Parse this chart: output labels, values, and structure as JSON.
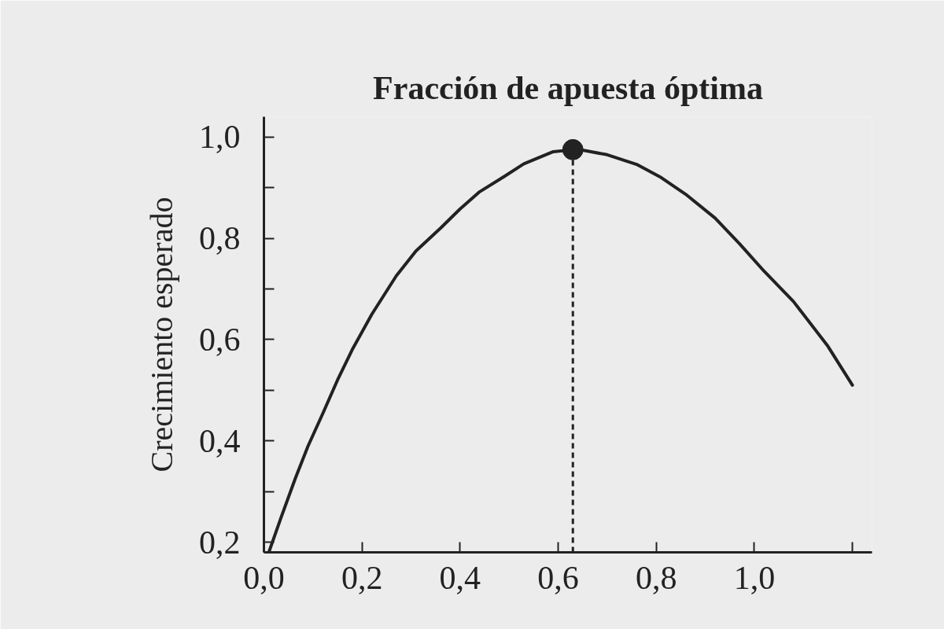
{
  "chart_data": {
    "type": "line",
    "title": "Fracción de apuesta óptima",
    "ylabel": "Crecimiento esperado",
    "xlim": [
      0,
      1.24
    ],
    "ylim": [
      0.18,
      1.04
    ],
    "xticks": [
      {
        "value": 0,
        "label": "0,0"
      },
      {
        "value": 0.2,
        "label": "0,2"
      },
      {
        "value": 0.4,
        "label": "0,4"
      },
      {
        "value": 0.6,
        "label": "0,6"
      },
      {
        "value": 0.8,
        "label": "0,8"
      },
      {
        "value": 1.0,
        "label": "1,0"
      },
      {
        "value": 1.2,
        "label": null
      }
    ],
    "yticks": [
      {
        "value": 0.2,
        "label": "0,2"
      },
      {
        "value": 0.3,
        "label": null
      },
      {
        "value": 0.4,
        "label": "0,4"
      },
      {
        "value": 0.5,
        "label": null
      },
      {
        "value": 0.6,
        "label": "0,6"
      },
      {
        "value": 0.7,
        "label": null
      },
      {
        "value": 0.8,
        "label": "0,8"
      },
      {
        "value": 0.9,
        "label": null
      },
      {
        "value": 1.0,
        "label": "1,0"
      }
    ],
    "series": [
      {
        "color": "#222222",
        "line_style": "solid",
        "x": [
          0.01,
          0.035,
          0.064,
          0.09,
          0.12,
          0.15,
          0.18,
          0.22,
          0.27,
          0.31,
          0.36,
          0.4,
          0.44,
          0.49,
          0.53,
          0.59,
          0.63,
          0.65,
          0.7,
          0.76,
          0.81,
          0.86,
          0.92,
          0.97,
          1.02,
          1.08,
          1.15,
          1.2
        ],
        "values": [
          0.18,
          0.249,
          0.326,
          0.39,
          0.454,
          0.52,
          0.58,
          0.65,
          0.726,
          0.775,
          0.82,
          0.858,
          0.892,
          0.922,
          0.947,
          0.971,
          0.975,
          0.974,
          0.965,
          0.946,
          0.92,
          0.887,
          0.84,
          0.789,
          0.735,
          0.675,
          0.587,
          0.51
        ]
      },
      {
        "type": "scatter",
        "color": "#222222",
        "marker": "circle",
        "x": [
          0.63
        ],
        "values": [
          0.975
        ]
      }
    ],
    "ref_lines": [
      {
        "axis": "x",
        "value": 0.63,
        "color": "#222222",
        "line_style": "dashed"
      }
    ]
  }
}
